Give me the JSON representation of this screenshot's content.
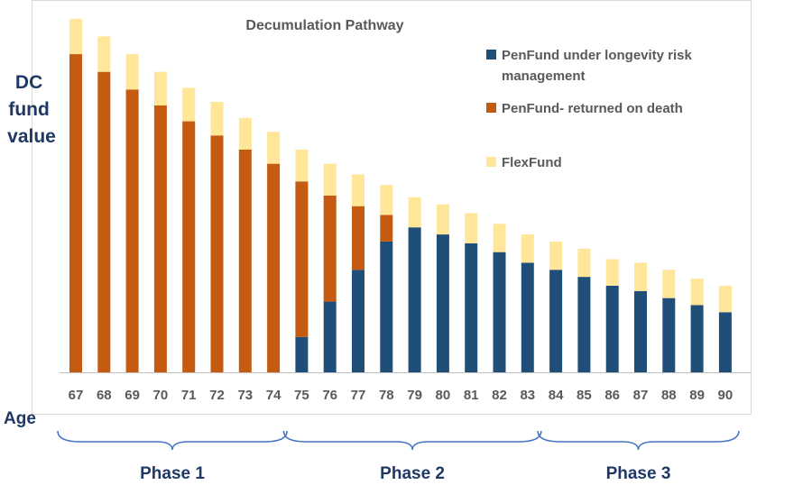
{
  "chart_data": {
    "type": "bar",
    "stacked": true,
    "title": "Decumulation Pathway",
    "ylabel": [
      "DC",
      "fund",
      "value"
    ],
    "xlabel": "Age",
    "categories": [
      "67",
      "68",
      "69",
      "70",
      "71",
      "72",
      "73",
      "74",
      "75",
      "76",
      "77",
      "78",
      "79",
      "80",
      "81",
      "82",
      "83",
      "84",
      "85",
      "86",
      "87",
      "88",
      "89",
      "90"
    ],
    "series": [
      {
        "name": "PenFund under longevity risk management",
        "color": "#1f4e79",
        "values": [
          0,
          0,
          0,
          0,
          0,
          0,
          0,
          0,
          10,
          20,
          29,
          37,
          41,
          39,
          36.5,
          34,
          31,
          29,
          27,
          24.5,
          23,
          21,
          19,
          17
        ]
      },
      {
        "name": "PenFund- returned on death",
        "color": "#c55a11",
        "values": [
          90,
          85,
          80,
          75.5,
          71,
          67,
          63,
          59,
          44,
          30,
          18,
          7.5,
          0,
          0,
          0,
          0,
          0,
          0,
          0,
          0,
          0,
          0,
          0,
          0
        ]
      },
      {
        "name": "FlexFund",
        "color": "#ffe699",
        "values": [
          10,
          10,
          10,
          9.5,
          9.5,
          9.5,
          9,
          9,
          9,
          9,
          9,
          8.5,
          8.5,
          8.5,
          8.5,
          8,
          8,
          8,
          8,
          7.5,
          8,
          8,
          7.5,
          7.5
        ]
      }
    ],
    "ylim": [
      0,
      102
    ],
    "grid": false,
    "legend_position": "right",
    "phases": [
      {
        "label": "Phase 1",
        "from": "67",
        "to": "74"
      },
      {
        "label": "Phase 2",
        "from": "75",
        "to": "83"
      },
      {
        "label": "Phase 3",
        "from": "84",
        "to": "90"
      }
    ]
  }
}
